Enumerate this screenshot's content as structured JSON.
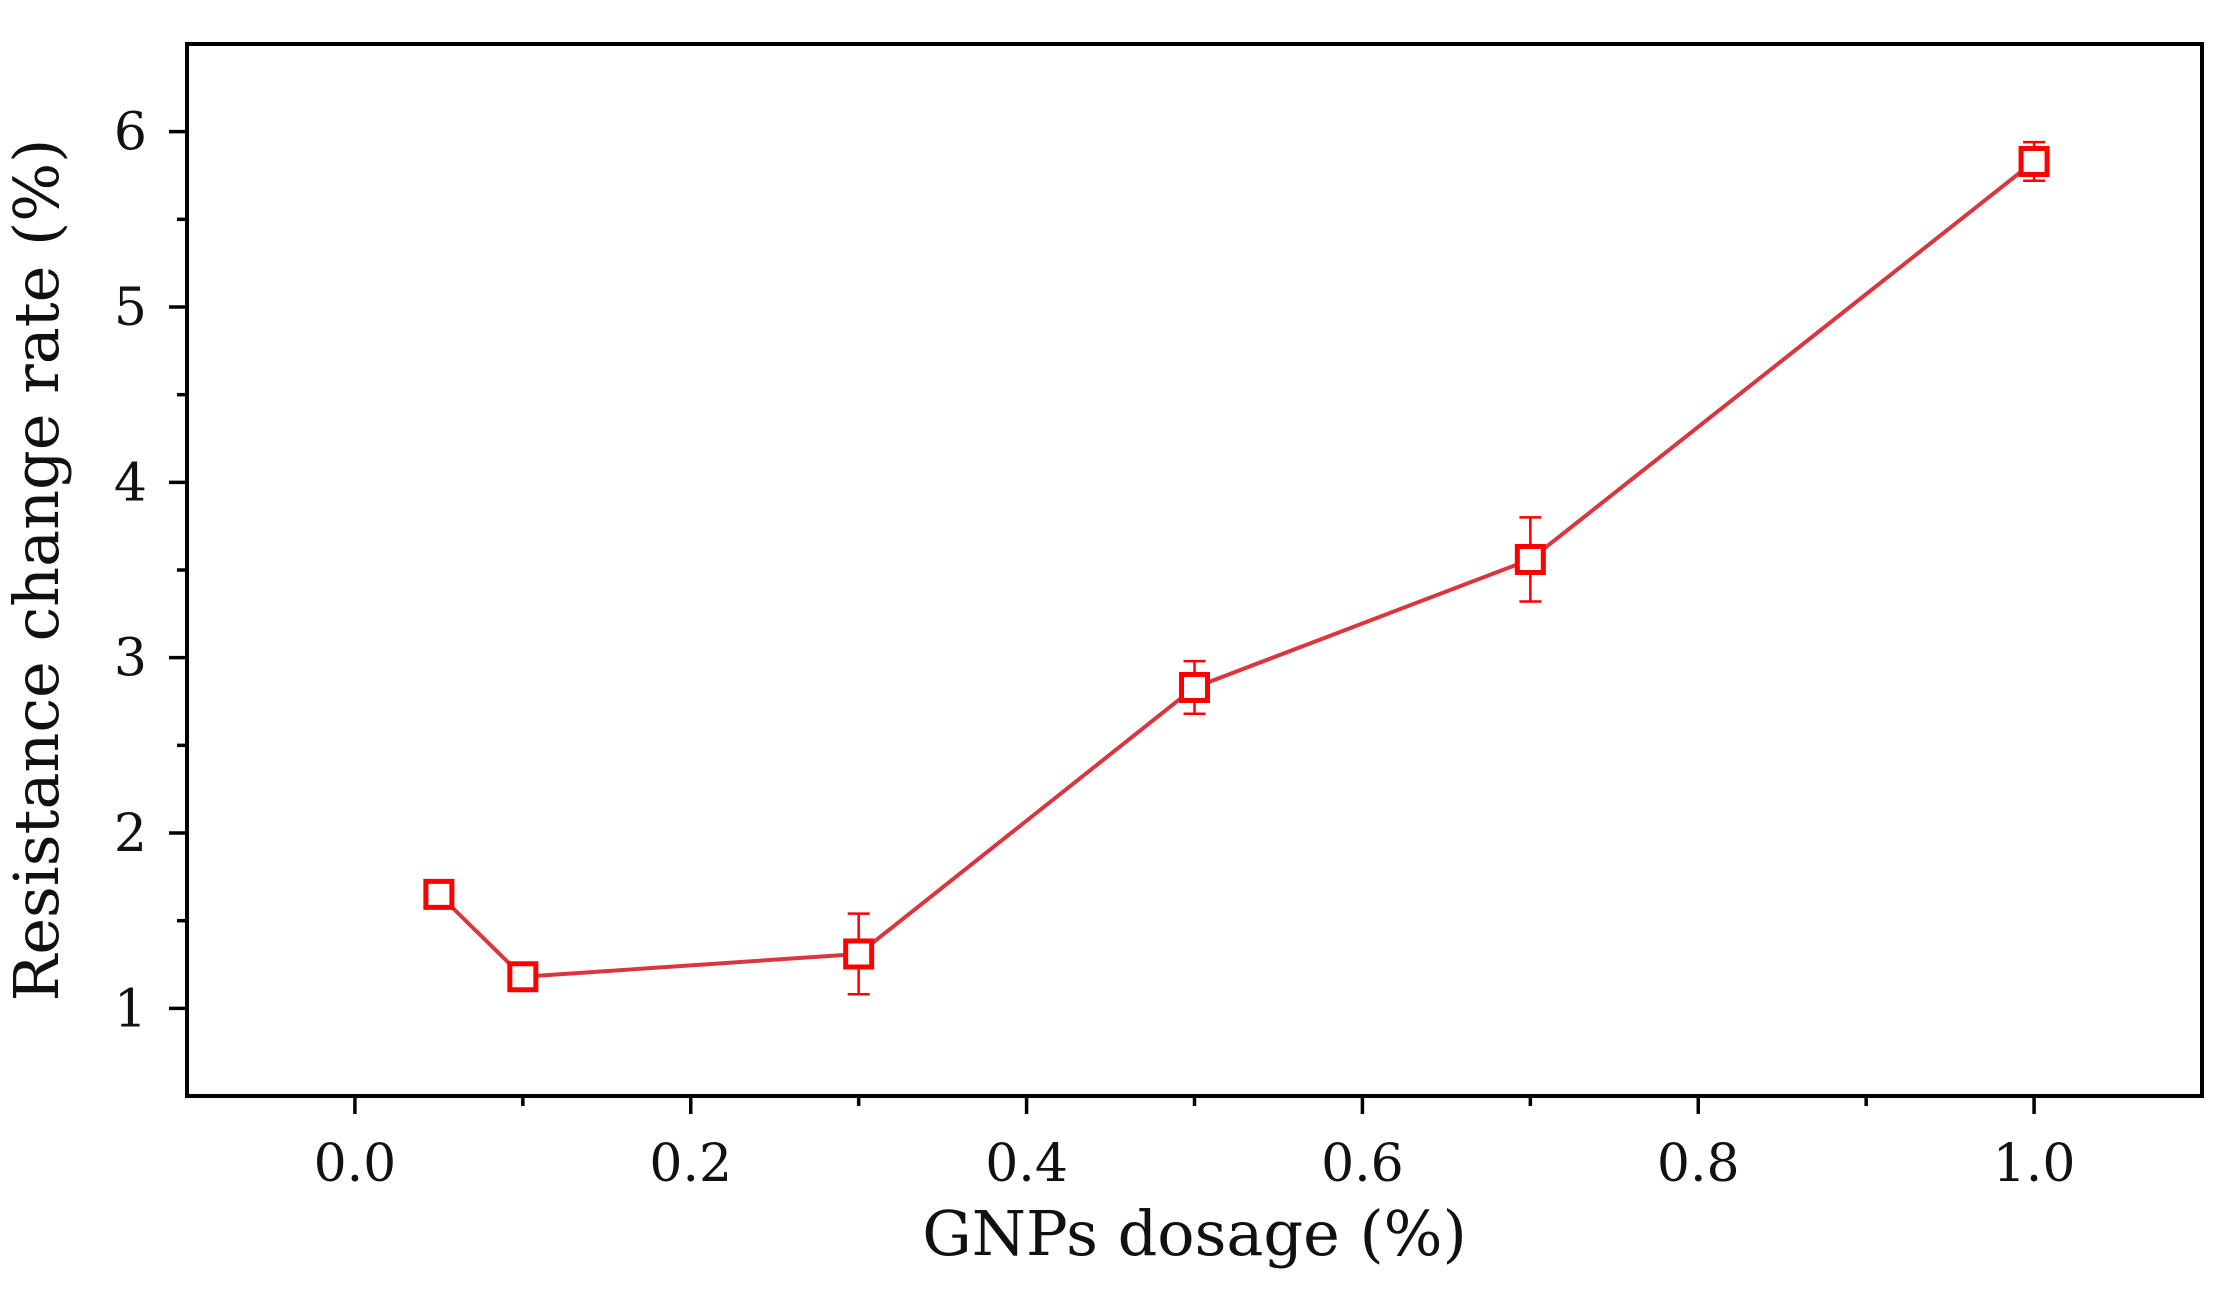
{
  "chart_data": {
    "type": "line",
    "title": "",
    "xlabel": "GNPs dosage (%)",
    "ylabel": "Resistance change rate (%)",
    "xlim": [
      -0.1,
      1.1
    ],
    "ylim": [
      0.5,
      6.5
    ],
    "x_ticks": [
      0.0,
      0.2,
      0.4,
      0.6,
      0.8,
      1.0
    ],
    "x_tick_labels": [
      "0.0",
      "0.2",
      "0.4",
      "0.6",
      "0.8",
      "1.0"
    ],
    "y_ticks": [
      1,
      2,
      3,
      4,
      5,
      6
    ],
    "y_tick_labels": [
      "1",
      "2",
      "3",
      "4",
      "5",
      "6"
    ],
    "grid": false,
    "legend": false,
    "series": [
      {
        "name": "Resistance change rate",
        "color": "#d9363e",
        "marker_color": "#ff0000",
        "marker": "open-square",
        "x": [
          0.05,
          0.1,
          0.3,
          0.5,
          0.7,
          1.0
        ],
        "y": [
          1.65,
          1.18,
          1.31,
          2.83,
          3.56,
          5.83
        ],
        "error": [
          0.05,
          0.05,
          0.23,
          0.15,
          0.24,
          0.11
        ]
      }
    ]
  }
}
